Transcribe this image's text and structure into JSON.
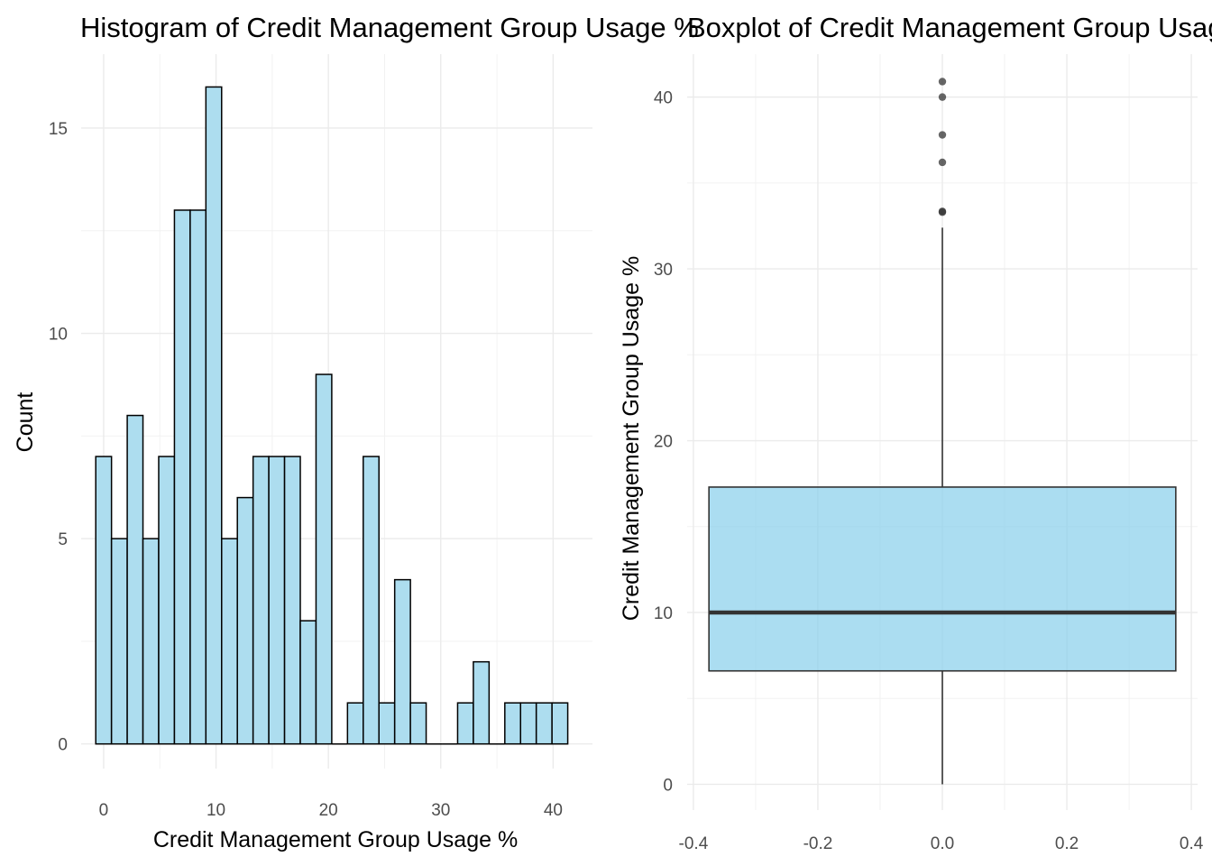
{
  "chart_data": [
    {
      "type": "bar",
      "subtype": "histogram",
      "title": "Histogram of Credit Management Group Usage %",
      "xlabel": "Credit Management Group Usage %",
      "ylabel": "Count",
      "bin_width": 1.4,
      "bin_centers": [
        0,
        1.4,
        2.8,
        4.2,
        5.6,
        7.0,
        8.4,
        9.8,
        11.2,
        12.6,
        14.0,
        15.4,
        16.8,
        18.2,
        19.6,
        21.0,
        22.4,
        23.8,
        25.2,
        26.6,
        28.0,
        29.4,
        30.8,
        32.2,
        33.6,
        35.0,
        36.4,
        37.8,
        39.2,
        40.6
      ],
      "values": [
        7,
        5,
        8,
        5,
        7,
        13,
        13,
        16,
        5,
        6,
        7,
        7,
        7,
        3,
        9,
        0,
        1,
        7,
        1,
        4,
        1,
        0,
        0,
        1,
        2,
        0,
        1,
        1,
        1,
        1
      ],
      "xlim": [
        -2,
        43.5
      ],
      "ylim": [
        -0.6,
        16.8
      ],
      "x_ticks": [
        0,
        10,
        20,
        30,
        40
      ],
      "x_tick_labels": [
        "0",
        "10",
        "20",
        "30",
        "40"
      ],
      "y_ticks": [
        0,
        5,
        10,
        15
      ],
      "y_tick_labels": [
        "0",
        "5",
        "10",
        "15"
      ],
      "bar_color": "#ADDDEF",
      "grid": true
    },
    {
      "type": "boxplot",
      "title": "Boxplot of Credit Management Group Usage %",
      "xlabel": "",
      "ylabel": "Credit Management Group Usage %",
      "stats": {
        "lower_whisker": 0,
        "q1": 6.6,
        "median": 10,
        "q3": 17.3,
        "upper_whisker": 32.4
      },
      "outliers": [
        33.3,
        33.35,
        36.2,
        37.8,
        40.0,
        40.9
      ],
      "box_x_range": [
        -0.375,
        0.375
      ],
      "xlim": [
        -0.41,
        0.41
      ],
      "ylim": [
        -1.5,
        42.5
      ],
      "x_ticks": [
        -0.4,
        -0.2,
        0.0,
        0.2,
        0.4
      ],
      "x_tick_labels": [
        "-0.4",
        "-0.2",
        "0.0",
        "0.2",
        "0.4"
      ],
      "y_ticks": [
        0,
        10,
        20,
        30,
        40
      ],
      "y_tick_labels": [
        "0",
        "10",
        "20",
        "30",
        "40"
      ],
      "box_color": "#87CEEB",
      "grid": true
    }
  ]
}
